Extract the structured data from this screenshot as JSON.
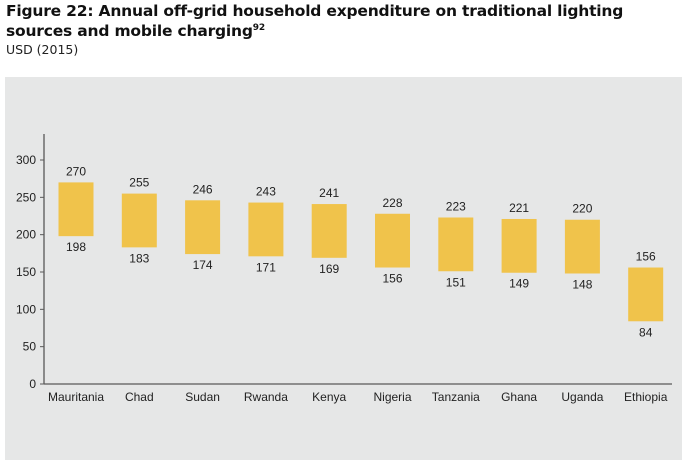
{
  "chart_data": {
    "type": "bar",
    "subtype": "floating-range",
    "title_main": "Figure 22: Annual off-grid household expenditure on traditional lighting sources and mobile charging",
    "title_footnote": "92",
    "subtitle": "USD (2015)",
    "xlabel": "",
    "ylabel": "",
    "ylim": [
      0,
      300
    ],
    "yticks": [
      0,
      50,
      100,
      150,
      200,
      250,
      300
    ],
    "grid": false,
    "legend": "none",
    "categories": [
      "Mauritania",
      "Chad",
      "Sudan",
      "Rwanda",
      "Kenya",
      "Nigeria",
      "Tanzania",
      "Ghana",
      "Uganda",
      "Ethiopia"
    ],
    "series": [
      {
        "name": "high",
        "values": [
          270,
          255,
          246,
          243,
          241,
          228,
          223,
          221,
          220,
          156
        ]
      },
      {
        "name": "low",
        "values": [
          198,
          183,
          174,
          171,
          169,
          156,
          151,
          149,
          148,
          84
        ]
      }
    ],
    "colors": {
      "bar": "#f0c34b",
      "panel": "#e6e7e7",
      "axis": "#595959"
    }
  }
}
